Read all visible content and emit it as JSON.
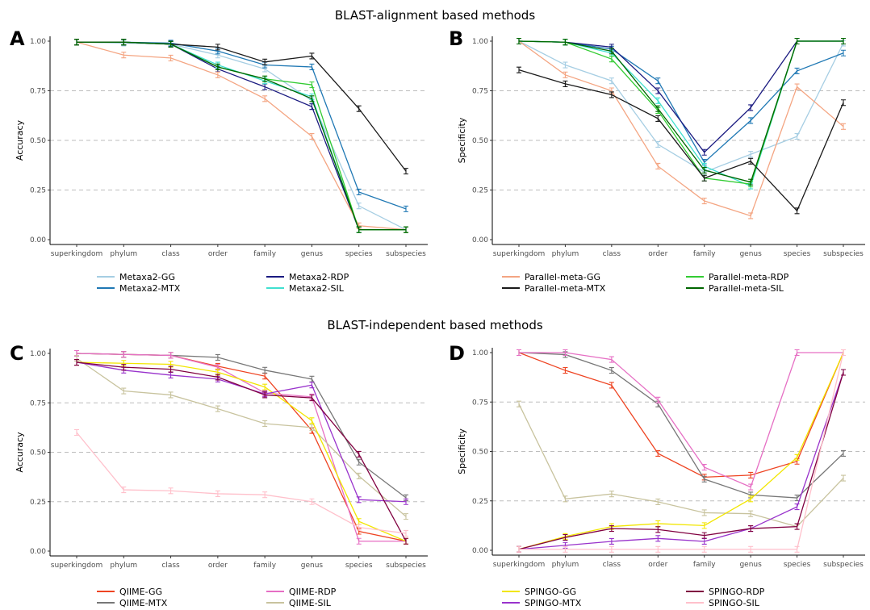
{
  "section_titles": [
    "BLAST-alignment based methods",
    "BLAST-independent based methods"
  ],
  "chart_data": [
    {
      "type": "line",
      "panel": "A",
      "ylabel": "Accuracy",
      "categories": [
        "superkingdom",
        "phylum",
        "class",
        "order",
        "family",
        "genus",
        "species",
        "subspecies"
      ],
      "yticks": [
        "0.00",
        "0.25",
        "0.50",
        "0.75",
        "1.00"
      ],
      "ylim": [
        0,
        1
      ],
      "grid": "dashed horizontal at 0.25, 0.50, 0.75",
      "series": [
        {
          "name": "Metaxa2-GG",
          "color": "#a6cee3",
          "values": [
            0.995,
            0.99,
            0.985,
            0.93,
            0.86,
            0.7,
            0.17,
            0.05
          ]
        },
        {
          "name": "Metaxa2-MTX",
          "color": "#1f78b4",
          "values": [
            0.995,
            0.995,
            0.99,
            0.95,
            0.88,
            0.87,
            0.24,
            0.155
          ]
        },
        {
          "name": "Metaxa2-RDP",
          "color": "#1a1a80",
          "values": [
            0.995,
            0.995,
            0.985,
            0.86,
            0.77,
            0.67,
            0.05,
            0.05
          ]
        },
        {
          "name": "Metaxa2-SIL",
          "color": "#40e0d0",
          "values": [
            0.995,
            0.995,
            0.985,
            0.88,
            0.8,
            0.72,
            0.05,
            0.05
          ]
        },
        {
          "name": "Parallel-meta-GG",
          "color": "#f4a582",
          "values": [
            0.995,
            0.93,
            0.915,
            0.83,
            0.71,
            0.52,
            0.07,
            0.05
          ]
        },
        {
          "name": "Parallel-meta-RDP",
          "color": "#33cc33",
          "values": [
            0.995,
            0.995,
            0.985,
            0.87,
            0.81,
            0.78,
            0.05,
            0.05
          ]
        },
        {
          "name": "Parallel-meta-MTX",
          "color": "#1a1a1a",
          "values": [
            0.995,
            0.995,
            0.985,
            0.97,
            0.895,
            0.925,
            0.66,
            0.345
          ]
        },
        {
          "name": "Parallel-meta-SIL",
          "color": "#006600",
          "values": [
            0.995,
            0.995,
            0.985,
            0.87,
            0.81,
            0.71,
            0.05,
            0.05
          ]
        }
      ]
    },
    {
      "type": "line",
      "panel": "B",
      "ylabel": "Specificity",
      "categories": [
        "superkingdom",
        "phylum",
        "class",
        "order",
        "family",
        "genus",
        "species",
        "subspecies"
      ],
      "yticks": [
        "0.00",
        "0.25",
        "0.50",
        "0.75",
        "1.00"
      ],
      "ylim": [
        0,
        1
      ],
      "series": [
        {
          "name": "Metaxa2-GG",
          "color": "#a6cee3",
          "values": [
            1.0,
            0.88,
            0.8,
            0.48,
            0.34,
            0.43,
            0.52,
            0.99
          ]
        },
        {
          "name": "Metaxa2-MTX",
          "color": "#1f78b4",
          "values": [
            1.0,
            0.995,
            0.96,
            0.8,
            0.39,
            0.6,
            0.85,
            0.94
          ]
        },
        {
          "name": "Metaxa2-RDP",
          "color": "#1a1a80",
          "values": [
            1.0,
            0.995,
            0.97,
            0.75,
            0.44,
            0.665,
            1.0,
            1.0
          ]
        },
        {
          "name": "Metaxa2-SIL",
          "color": "#40e0d0",
          "values": [
            1.0,
            0.995,
            0.94,
            0.7,
            0.37,
            0.27,
            1.0,
            1.0
          ]
        },
        {
          "name": "Parallel-meta-GG",
          "color": "#f4a582",
          "values": [
            1.0,
            0.83,
            0.75,
            0.37,
            0.195,
            0.12,
            0.77,
            0.57
          ]
        },
        {
          "name": "Parallel-meta-RDP",
          "color": "#33cc33",
          "values": [
            1.0,
            0.995,
            0.91,
            0.65,
            0.31,
            0.28,
            1.0,
            1.0
          ]
        },
        {
          "name": "Parallel-meta-MTX",
          "color": "#1a1a1a",
          "values": [
            0.855,
            0.785,
            0.73,
            0.61,
            0.31,
            0.395,
            0.145,
            0.69
          ]
        },
        {
          "name": "Parallel-meta-SIL",
          "color": "#006600",
          "values": [
            1.0,
            0.995,
            0.95,
            0.66,
            0.35,
            0.29,
            1.0,
            1.0
          ]
        }
      ]
    },
    {
      "type": "line",
      "panel": "C",
      "ylabel": "Accuracy",
      "categories": [
        "superkingdom",
        "phylum",
        "class",
        "order",
        "family",
        "genus",
        "species",
        "subspecies"
      ],
      "yticks": [
        "0.00",
        "0.25",
        "0.50",
        "0.75",
        "1.00"
      ],
      "ylim": [
        0,
        1
      ],
      "series": [
        {
          "name": "QIIME-GG",
          "color": "#ee4422",
          "values": [
            1.0,
            0.995,
            0.99,
            0.935,
            0.885,
            0.61,
            0.1,
            0.05
          ]
        },
        {
          "name": "QIIME-MTX",
          "color": "#777777",
          "values": [
            1.0,
            0.995,
            0.99,
            0.98,
            0.915,
            0.87,
            0.45,
            0.27
          ]
        },
        {
          "name": "QIIME-RDP",
          "color": "#e66fc4",
          "values": [
            1.0,
            0.995,
            0.99,
            0.93,
            0.8,
            0.78,
            0.05,
            0.05
          ]
        },
        {
          "name": "QIIME-SIL",
          "color": "#c8c39e",
          "values": [
            0.975,
            0.81,
            0.79,
            0.72,
            0.645,
            0.625,
            0.38,
            0.175
          ]
        },
        {
          "name": "SPINGO-GG",
          "color": "#f2e600",
          "values": [
            0.955,
            0.95,
            0.945,
            0.905,
            0.83,
            0.66,
            0.15,
            0.05
          ]
        },
        {
          "name": "SPINGO-MTX",
          "color": "#9933cc",
          "values": [
            0.955,
            0.915,
            0.89,
            0.87,
            0.795,
            0.84,
            0.26,
            0.25
          ]
        },
        {
          "name": "SPINGO-RDP",
          "color": "#800040",
          "values": [
            0.955,
            0.93,
            0.92,
            0.88,
            0.79,
            0.775,
            0.49,
            0.05
          ]
        },
        {
          "name": "SPINGO-SIL",
          "color": "#ffc0cb",
          "values": [
            0.6,
            0.31,
            0.305,
            0.29,
            0.285,
            0.25,
            0.12,
            0.09
          ]
        }
      ]
    },
    {
      "type": "line",
      "panel": "D",
      "ylabel": "Specificity",
      "categories": [
        "superkingdom",
        "phylum",
        "class",
        "order",
        "family",
        "genus",
        "species",
        "subspecies"
      ],
      "yticks": [
        "0.00",
        "0.25",
        "0.50",
        "0.75",
        "1.00"
      ],
      "ylim": [
        0,
        1
      ],
      "series": [
        {
          "name": "QIIME-GG",
          "color": "#ee4422",
          "values": [
            1.0,
            0.91,
            0.835,
            0.49,
            0.37,
            0.38,
            0.45,
            1.0
          ]
        },
        {
          "name": "QIIME-MTX",
          "color": "#777777",
          "values": [
            1.0,
            0.99,
            0.91,
            0.74,
            0.36,
            0.28,
            0.265,
            0.49
          ]
        },
        {
          "name": "QIIME-RDP",
          "color": "#e66fc4",
          "values": [
            1.0,
            1.0,
            0.965,
            0.76,
            0.42,
            0.32,
            1.0,
            1.0
          ]
        },
        {
          "name": "QIIME-SIL",
          "color": "#c8c39e",
          "values": [
            0.74,
            0.26,
            0.285,
            0.245,
            0.19,
            0.185,
            0.12,
            0.365
          ]
        },
        {
          "name": "SPINGO-GG",
          "color": "#f2e600",
          "values": [
            0.005,
            0.07,
            0.12,
            0.135,
            0.125,
            0.26,
            0.47,
            1.0
          ]
        },
        {
          "name": "SPINGO-MTX",
          "color": "#9933cc",
          "values": [
            0.005,
            0.025,
            0.045,
            0.06,
            0.045,
            0.11,
            0.22,
            0.9
          ]
        },
        {
          "name": "SPINGO-RDP",
          "color": "#800040",
          "values": [
            0.005,
            0.065,
            0.11,
            0.105,
            0.075,
            0.11,
            0.12,
            0.9
          ]
        },
        {
          "name": "SPINGO-SIL",
          "color": "#ffc0cb",
          "values": [
            0.005,
            0.005,
            0.005,
            0.005,
            0.005,
            0.005,
            0.005,
            1.0
          ]
        }
      ]
    }
  ],
  "legends": [
    {
      "panel": "A",
      "items": [
        "Metaxa2-GG",
        "Metaxa2-RDP",
        "Metaxa2-MTX",
        "Metaxa2-SIL"
      ]
    },
    {
      "panel": "B",
      "items": [
        "Parallel-meta-GG",
        "Parallel-meta-RDP",
        "Parallel-meta-MTX",
        "Parallel-meta-SIL"
      ]
    },
    {
      "panel": "C",
      "items": [
        "QIIME-GG",
        "QIIME-RDP",
        "QIIME-MTX",
        "QIIME-SIL"
      ]
    },
    {
      "panel": "D",
      "items": [
        "SPINGO-GG",
        "SPINGO-RDP",
        "SPINGO-MTX",
        "SPINGO-SIL"
      ]
    }
  ]
}
